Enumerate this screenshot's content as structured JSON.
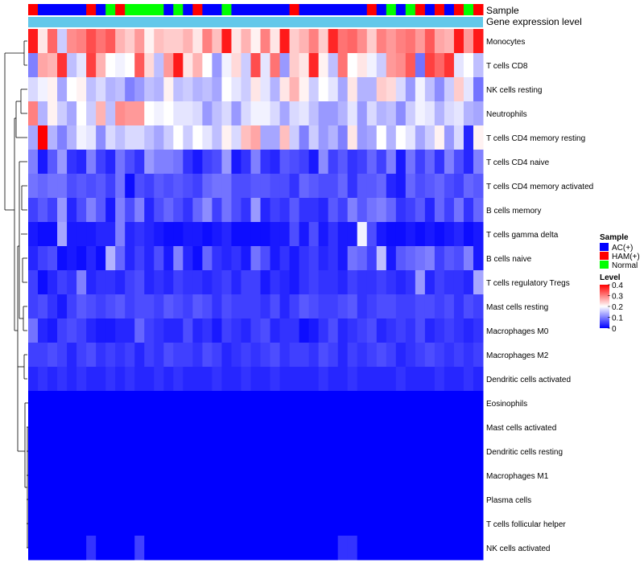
{
  "chart_data": {
    "type": "heatmap",
    "annotation_track_labels": [
      "Sample",
      "Gene expression level"
    ],
    "sample_groups": [
      "HAM(+)",
      "AC(+)",
      "AC(+)",
      "AC(+)",
      "AC(+)",
      "AC(+)",
      "HAM(+)",
      "AC(+)",
      "Normal",
      "HAM(+)",
      "Normal",
      "Normal",
      "Normal",
      "Normal",
      "AC(+)",
      "Normal",
      "AC(+)",
      "HAM(+)",
      "AC(+)",
      "AC(+)",
      "Normal",
      "AC(+)",
      "AC(+)",
      "AC(+)",
      "AC(+)",
      "AC(+)",
      "AC(+)",
      "HAM(+)",
      "AC(+)",
      "AC(+)",
      "AC(+)",
      "AC(+)",
      "AC(+)",
      "AC(+)",
      "AC(+)",
      "HAM(+)",
      "AC(+)",
      "Normal",
      "AC(+)",
      "Normal",
      "HAM(+)",
      "AC(+)",
      "HAM(+)",
      "AC(+)",
      "HAM(+)",
      "Normal",
      "HAM(+)"
    ],
    "rows": [
      "Monocytes",
      "T cells CD8",
      "NK cells resting",
      "Neutrophils",
      "T cells CD4 memory resting",
      "T cells CD4 naive",
      "T cells CD4 memory activated",
      "B cells memory",
      "T cells gamma delta",
      "B cells naive",
      "T cells regulatory  Tregs",
      "Mast cells resting",
      "Macrophages M0",
      "Macrophages M2",
      "Dendritic cells activated",
      "Eosinophils",
      "Mast cells activated",
      "Dendritic cells resting",
      "Macrophages M1",
      "Plasma cells",
      "T cells follicular helper",
      "NK cells activated"
    ],
    "values": [
      [
        0.38,
        0.22,
        0.32,
        0.16,
        0.29,
        0.3,
        0.34,
        0.31,
        0.33,
        0.26,
        0.24,
        0.28,
        0.21,
        0.25,
        0.24,
        0.24,
        0.26,
        0.22,
        0.3,
        0.25,
        0.38,
        0.22,
        0.26,
        0.21,
        0.3,
        0.22,
        0.38,
        0.24,
        0.26,
        0.3,
        0.24,
        0.37,
        0.31,
        0.32,
        0.29,
        0.24,
        0.3,
        0.28,
        0.3,
        0.31,
        0.28,
        0.33,
        0.27,
        0.26,
        0.38,
        0.28,
        0.38
      ],
      [
        0.1,
        0.27,
        0.26,
        0.36,
        0.15,
        0.18,
        0.35,
        0.26,
        0.2,
        0.19,
        0.2,
        0.33,
        0.23,
        0.15,
        0.28,
        0.38,
        0.22,
        0.26,
        0.2,
        0.12,
        0.19,
        0.23,
        0.16,
        0.34,
        0.18,
        0.31,
        0.12,
        0.24,
        0.22,
        0.37,
        0.21,
        0.15,
        0.31,
        0.2,
        0.22,
        0.19,
        0.16,
        0.28,
        0.29,
        0.33,
        0.09,
        0.35,
        0.32,
        0.36,
        0.18,
        0.2,
        0.15
      ],
      [
        0.17,
        0.19,
        0.21,
        0.13,
        0.2,
        0.21,
        0.15,
        0.17,
        0.14,
        0.15,
        0.1,
        0.12,
        0.15,
        0.14,
        0.21,
        0.15,
        0.16,
        0.14,
        0.15,
        0.13,
        0.2,
        0.18,
        0.16,
        0.22,
        0.18,
        0.14,
        0.22,
        0.26,
        0.21,
        0.16,
        0.2,
        0.18,
        0.13,
        0.22,
        0.14,
        0.14,
        0.24,
        0.23,
        0.17,
        0.12,
        0.19,
        0.15,
        0.11,
        0.16,
        0.24,
        0.18,
        0.09
      ],
      [
        0.3,
        0.14,
        0.21,
        0.16,
        0.13,
        0.2,
        0.16,
        0.26,
        0.15,
        0.29,
        0.28,
        0.28,
        0.2,
        0.19,
        0.2,
        0.18,
        0.18,
        0.17,
        0.12,
        0.15,
        0.17,
        0.12,
        0.17,
        0.19,
        0.19,
        0.17,
        0.13,
        0.17,
        0.18,
        0.15,
        0.12,
        0.12,
        0.14,
        0.18,
        0.12,
        0.17,
        0.14,
        0.15,
        0.11,
        0.16,
        0.19,
        0.18,
        0.14,
        0.17,
        0.18,
        0.14,
        0.13
      ],
      [
        0.13,
        0.4,
        0.14,
        0.1,
        0.14,
        0.19,
        0.18,
        0.11,
        0.17,
        0.15,
        0.17,
        0.17,
        0.15,
        0.13,
        0.16,
        0.2,
        0.16,
        0.2,
        0.18,
        0.15,
        0.21,
        0.17,
        0.25,
        0.27,
        0.13,
        0.13,
        0.25,
        0.16,
        0.1,
        0.16,
        0.12,
        0.14,
        0.1,
        0.22,
        0.12,
        0.13,
        0.2,
        0.14,
        0.2,
        0.18,
        0.13,
        0.16,
        0.21,
        0.12,
        0.17,
        0.03,
        0.21
      ],
      [
        0.1,
        0.02,
        0.07,
        0.12,
        0.04,
        0.03,
        0.1,
        0.05,
        0.03,
        0.09,
        0.06,
        0.04,
        0.12,
        0.1,
        0.1,
        0.09,
        0.04,
        0.02,
        0.05,
        0.06,
        0.12,
        0.02,
        0.04,
        0.1,
        0.04,
        0.03,
        0.07,
        0.06,
        0.05,
        0.02,
        0.11,
        0.05,
        0.07,
        0.04,
        0.05,
        0.08,
        0.05,
        0.1,
        0.02,
        0.09,
        0.05,
        0.08,
        0.04,
        0.1,
        0.06,
        0.03,
        0.1
      ],
      [
        0.09,
        0.08,
        0.09,
        0.09,
        0.06,
        0.07,
        0.06,
        0.07,
        0.05,
        0.09,
        0.01,
        0.06,
        0.05,
        0.07,
        0.06,
        0.07,
        0.06,
        0.05,
        0.08,
        0.09,
        0.09,
        0.06,
        0.06,
        0.07,
        0.07,
        0.06,
        0.06,
        0.04,
        0.08,
        0.07,
        0.06,
        0.06,
        0.08,
        0.04,
        0.07,
        0.07,
        0.08,
        0.03,
        0.02,
        0.08,
        0.06,
        0.07,
        0.08,
        0.06,
        0.05,
        0.08,
        0.07
      ],
      [
        0.05,
        0.07,
        0.05,
        0.12,
        0.03,
        0.06,
        0.1,
        0.07,
        0.02,
        0.1,
        0.06,
        0.1,
        0.03,
        0.06,
        0.08,
        0.06,
        0.04,
        0.08,
        0.11,
        0.05,
        0.09,
        0.06,
        0.04,
        0.12,
        0.03,
        0.05,
        0.04,
        0.07,
        0.04,
        0.04,
        0.03,
        0.07,
        0.05,
        0.1,
        0.07,
        0.09,
        0.1,
        0.08,
        0.04,
        0.05,
        0.07,
        0.03,
        0.08,
        0.05,
        0.09,
        0.04,
        0.08
      ],
      [
        0.02,
        0.01,
        0.01,
        0.13,
        0.02,
        0.02,
        0.02,
        0.03,
        0.03,
        0.1,
        0.03,
        0.04,
        0.03,
        0.02,
        0.01,
        0.01,
        0.02,
        0.02,
        0.01,
        0.02,
        0.03,
        0.01,
        0.01,
        0.01,
        0.01,
        0.02,
        0.02,
        0.06,
        0.02,
        0.06,
        0.02,
        0.04,
        0.02,
        0.02,
        0.19,
        0.06,
        0.02,
        0.01,
        0.01,
        0.02,
        0.01,
        0.02,
        0.01,
        0.02,
        0.03,
        0.01,
        0.02
      ],
      [
        0.03,
        0.05,
        0.06,
        0.01,
        0.02,
        0.01,
        0.03,
        0.01,
        0.14,
        0.08,
        0.03,
        0.05,
        0.03,
        0.06,
        0.02,
        0.1,
        0.03,
        0.01,
        0.08,
        0.04,
        0.03,
        0.04,
        0.02,
        0.09,
        0.06,
        0.02,
        0.04,
        0.02,
        0.04,
        0.05,
        0.03,
        0.04,
        0.02,
        0.09,
        0.08,
        0.05,
        0.15,
        0.02,
        0.07,
        0.08,
        0.09,
        0.1,
        0.05,
        0.07,
        0.06,
        0.1,
        0.02
      ],
      [
        0.05,
        0.01,
        0.03,
        0.05,
        0.04,
        0.1,
        0.03,
        0.04,
        0.04,
        0.03,
        0.05,
        0.06,
        0.03,
        0.04,
        0.03,
        0.05,
        0.04,
        0.04,
        0.03,
        0.04,
        0.05,
        0.03,
        0.05,
        0.05,
        0.02,
        0.04,
        0.03,
        0.02,
        0.04,
        0.05,
        0.04,
        0.04,
        0.03,
        0.05,
        0.04,
        0.04,
        0.05,
        0.04,
        0.03,
        0.04,
        0.12,
        0.03,
        0.05,
        0.04,
        0.04,
        0.03,
        0.13
      ],
      [
        0.05,
        0.06,
        0.04,
        0.02,
        0.05,
        0.07,
        0.06,
        0.05,
        0.06,
        0.07,
        0.05,
        0.06,
        0.06,
        0.05,
        0.07,
        0.06,
        0.05,
        0.07,
        0.06,
        0.04,
        0.06,
        0.05,
        0.05,
        0.05,
        0.04,
        0.06,
        0.03,
        0.05,
        0.07,
        0.06,
        0.05,
        0.05,
        0.06,
        0.07,
        0.04,
        0.05,
        0.06,
        0.06,
        0.05,
        0.05,
        0.06,
        0.06,
        0.05,
        0.06,
        0.04,
        0.06,
        0.05
      ],
      [
        0.09,
        0.03,
        0.02,
        0.05,
        0.06,
        0.05,
        0.03,
        0.02,
        0.02,
        0.03,
        0.03,
        0.08,
        0.05,
        0.04,
        0.03,
        0.03,
        0.06,
        0.03,
        0.04,
        0.02,
        0.05,
        0.04,
        0.03,
        0.05,
        0.06,
        0.03,
        0.04,
        0.04,
        0.01,
        0.02,
        0.04,
        0.06,
        0.03,
        0.04,
        0.05,
        0.06,
        0.03,
        0.04,
        0.05,
        0.04,
        0.06,
        0.03,
        0.04,
        0.05,
        0.04,
        0.03,
        0.04
      ],
      [
        0.05,
        0.05,
        0.06,
        0.05,
        0.03,
        0.05,
        0.06,
        0.04,
        0.05,
        0.04,
        0.05,
        0.03,
        0.05,
        0.04,
        0.06,
        0.05,
        0.05,
        0.04,
        0.06,
        0.05,
        0.03,
        0.04,
        0.05,
        0.04,
        0.05,
        0.06,
        0.04,
        0.05,
        0.05,
        0.04,
        0.06,
        0.05,
        0.03,
        0.05,
        0.04,
        0.05,
        0.06,
        0.05,
        0.03,
        0.04,
        0.05,
        0.06,
        0.05,
        0.04,
        0.05,
        0.04,
        0.05
      ],
      [
        0.03,
        0.04,
        0.03,
        0.04,
        0.03,
        0.04,
        0.03,
        0.03,
        0.04,
        0.03,
        0.04,
        0.03,
        0.03,
        0.04,
        0.03,
        0.04,
        0.03,
        0.03,
        0.03,
        0.04,
        0.03,
        0.03,
        0.04,
        0.03,
        0.03,
        0.04,
        0.03,
        0.03,
        0.03,
        0.03,
        0.04,
        0.03,
        0.03,
        0.04,
        0.03,
        0.03,
        0.03,
        0.03,
        0.04,
        0.03,
        0.03,
        0.03,
        0.04,
        0.03,
        0.03,
        0.04,
        0.03
      ],
      [
        0,
        0,
        0,
        0,
        0,
        0,
        0,
        0,
        0,
        0,
        0,
        0,
        0,
        0,
        0,
        0,
        0,
        0,
        0,
        0,
        0,
        0,
        0,
        0,
        0,
        0,
        0,
        0,
        0,
        0,
        0,
        0,
        0,
        0,
        0,
        0,
        0,
        0,
        0,
        0,
        0,
        0,
        0,
        0,
        0,
        0,
        0
      ],
      [
        0,
        0,
        0,
        0,
        0,
        0,
        0,
        0,
        0,
        0,
        0,
        0,
        0,
        0,
        0,
        0,
        0,
        0,
        0,
        0,
        0,
        0,
        0,
        0,
        0,
        0,
        0,
        0,
        0,
        0,
        0,
        0,
        0,
        0,
        0,
        0,
        0,
        0,
        0,
        0,
        0,
        0,
        0,
        0,
        0,
        0,
        0
      ],
      [
        0,
        0,
        0,
        0,
        0,
        0,
        0,
        0,
        0,
        0,
        0,
        0,
        0,
        0,
        0,
        0,
        0,
        0,
        0,
        0,
        0,
        0,
        0,
        0,
        0,
        0,
        0,
        0,
        0,
        0,
        0,
        0,
        0,
        0,
        0,
        0,
        0,
        0,
        0,
        0,
        0,
        0,
        0,
        0,
        0,
        0,
        0
      ],
      [
        0,
        0,
        0,
        0,
        0,
        0,
        0,
        0,
        0,
        0,
        0,
        0,
        0,
        0,
        0,
        0,
        0,
        0,
        0,
        0,
        0,
        0,
        0,
        0,
        0,
        0,
        0,
        0,
        0,
        0,
        0,
        0,
        0,
        0,
        0,
        0,
        0,
        0,
        0,
        0,
        0,
        0,
        0,
        0,
        0,
        0,
        0
      ],
      [
        0,
        0,
        0,
        0,
        0,
        0,
        0,
        0,
        0,
        0,
        0,
        0,
        0,
        0,
        0,
        0,
        0,
        0,
        0,
        0,
        0,
        0,
        0,
        0,
        0,
        0,
        0,
        0,
        0,
        0,
        0,
        0,
        0,
        0,
        0,
        0,
        0,
        0,
        0,
        0,
        0,
        0,
        0,
        0,
        0,
        0,
        0
      ],
      [
        0,
        0,
        0,
        0,
        0,
        0,
        0,
        0,
        0,
        0,
        0,
        0,
        0,
        0,
        0,
        0,
        0,
        0,
        0,
        0,
        0,
        0,
        0,
        0,
        0,
        0,
        0,
        0,
        0,
        0,
        0,
        0,
        0,
        0,
        0,
        0,
        0,
        0,
        0,
        0,
        0,
        0,
        0,
        0,
        0,
        0,
        0
      ],
      [
        0,
        0,
        0,
        0,
        0,
        0,
        0.04,
        0,
        0,
        0,
        0,
        0.05,
        0,
        0,
        0,
        0,
        0,
        0,
        0,
        0,
        0,
        0,
        0,
        0,
        0,
        0,
        0,
        0,
        0,
        0,
        0,
        0,
        0.04,
        0.04,
        0,
        0,
        0,
        0,
        0,
        0,
        0,
        0,
        0,
        0,
        0,
        0,
        0
      ]
    ],
    "legend": {
      "sample_title": "Sample",
      "sample_entries": [
        {
          "label": "AC(+)",
          "color": "#0000ff"
        },
        {
          "label": "HAM(+)",
          "color": "#ff0000"
        },
        {
          "label": "Normal",
          "color": "#00ff00"
        }
      ],
      "level_title": "Level",
      "level_ticks": [
        "0.4",
        "0.3",
        "0.2",
        "0.1",
        "0"
      ],
      "level_range": [
        0,
        0.4
      ],
      "placement": "right"
    },
    "colors": {
      "low": "#0000ff",
      "mid": "#ffffff",
      "high": "#ff0000",
      "expression_track": "#62c8ea"
    }
  }
}
